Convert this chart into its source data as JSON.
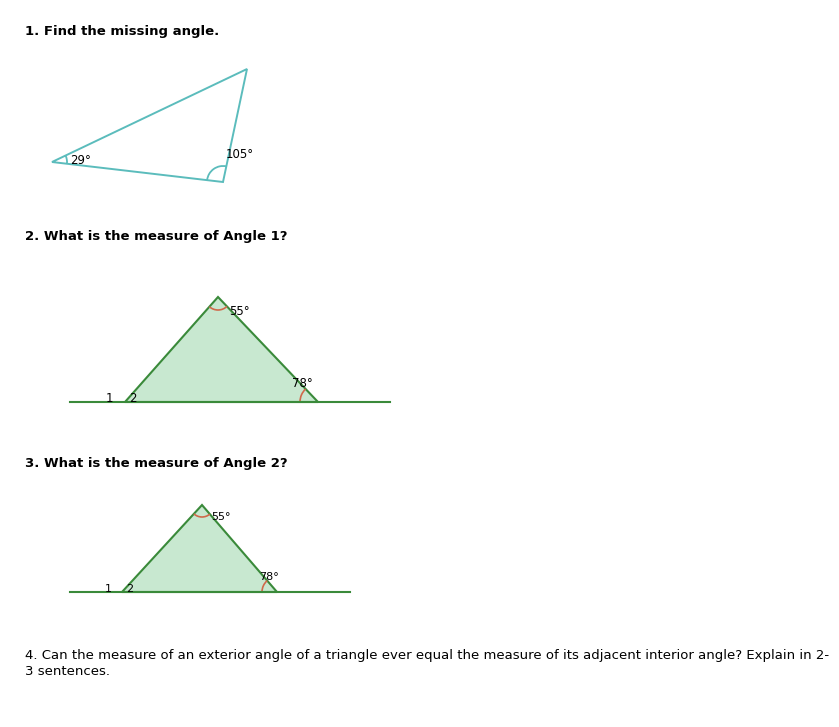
{
  "bg_color": "#ffffff",
  "text_color": "#000000",
  "q1_label": "1. Find the missing angle.",
  "q2_label": "2. What is the measure of Angle 1?",
  "q3_label": "3. What is the measure of Angle 2?",
  "q4_label": "4. Can the measure of an exterior angle of a triangle ever equal the measure of its adjacent interior angle? Explain in 2-\n3 sentences.",
  "triangle1_edge": "#5bbcbc",
  "triangle2_fill": "#c8e8d0",
  "triangle2_edge": "#3a8a3a",
  "arc1_color": "#5bbcbc",
  "arc2_color": "#d0694a",
  "font_size_q": 9.5,
  "font_size_angle": 8.5,
  "font_size_num": 8.5,
  "q4_line1": "4. Can the measure of an exterior angle of a triangle ever equal the measure of its adjacent interior angle? Explain in 2-",
  "q4_line2": "3 sentences."
}
